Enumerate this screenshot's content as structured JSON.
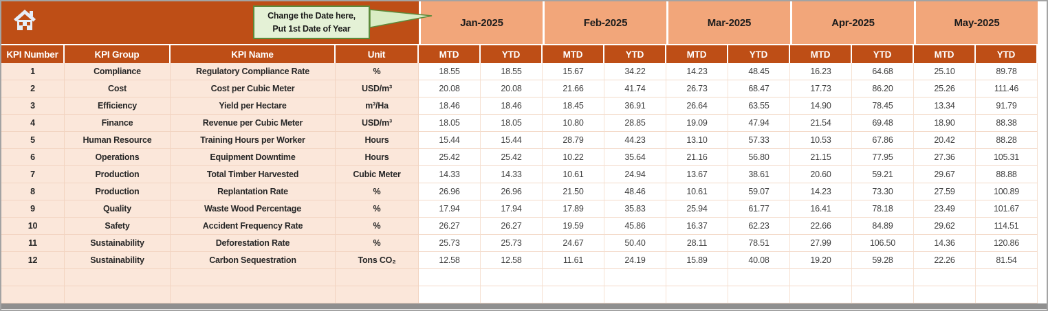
{
  "callout": {
    "line1": "Change the Date here,",
    "line2": "Put 1st Date of Year"
  },
  "columns": {
    "kpi_number": "KPI Number",
    "kpi_group": "KPI Group",
    "kpi_name": "KPI Name",
    "unit": "Unit",
    "mtd": "MTD",
    "ytd": "YTD"
  },
  "months": [
    "Jan-2025",
    "Feb-2025",
    "Mar-2025",
    "Apr-2025",
    "May-2025"
  ],
  "icons": {
    "home": "home-icon",
    "callout_pointer": "callout-pointer-icon"
  },
  "colors": {
    "header_orange": "#BE4E16",
    "month_salmon": "#F2A67A",
    "row_peach": "#FBE7DA",
    "callout_green": "#E4F1D6",
    "callout_border": "#5C8A3A"
  },
  "rows": [
    {
      "num": "1",
      "group": "Compliance",
      "name": "Regulatory Compliance Rate",
      "unit": "%",
      "values": [
        "18.55",
        "18.55",
        "15.67",
        "34.22",
        "14.23",
        "48.45",
        "16.23",
        "64.68",
        "25.10",
        "89.78"
      ]
    },
    {
      "num": "2",
      "group": "Cost",
      "name": "Cost per Cubic Meter",
      "unit": "USD/m³",
      "values": [
        "20.08",
        "20.08",
        "21.66",
        "41.74",
        "26.73",
        "68.47",
        "17.73",
        "86.20",
        "25.26",
        "111.46"
      ]
    },
    {
      "num": "3",
      "group": "Efficiency",
      "name": "Yield per Hectare",
      "unit": "m³/Ha",
      "values": [
        "18.46",
        "18.46",
        "18.45",
        "36.91",
        "26.64",
        "63.55",
        "14.90",
        "78.45",
        "13.34",
        "91.79"
      ]
    },
    {
      "num": "4",
      "group": "Finance",
      "name": "Revenue per Cubic Meter",
      "unit": "USD/m³",
      "values": [
        "18.05",
        "18.05",
        "10.80",
        "28.85",
        "19.09",
        "47.94",
        "21.54",
        "69.48",
        "18.90",
        "88.38"
      ]
    },
    {
      "num": "5",
      "group": "Human Resource",
      "name": "Training Hours per Worker",
      "unit": "Hours",
      "values": [
        "15.44",
        "15.44",
        "28.79",
        "44.23",
        "13.10",
        "57.33",
        "10.53",
        "67.86",
        "20.42",
        "88.28"
      ]
    },
    {
      "num": "6",
      "group": "Operations",
      "name": "Equipment Downtime",
      "unit": "Hours",
      "values": [
        "25.42",
        "25.42",
        "10.22",
        "35.64",
        "21.16",
        "56.80",
        "21.15",
        "77.95",
        "27.36",
        "105.31"
      ]
    },
    {
      "num": "7",
      "group": "Production",
      "name": "Total Timber Harvested",
      "unit": "Cubic Meter",
      "values": [
        "14.33",
        "14.33",
        "10.61",
        "24.94",
        "13.67",
        "38.61",
        "20.60",
        "59.21",
        "29.67",
        "88.88"
      ]
    },
    {
      "num": "8",
      "group": "Production",
      "name": "Replantation Rate",
      "unit": "%",
      "values": [
        "26.96",
        "26.96",
        "21.50",
        "48.46",
        "10.61",
        "59.07",
        "14.23",
        "73.30",
        "27.59",
        "100.89"
      ]
    },
    {
      "num": "9",
      "group": "Quality",
      "name": "Waste Wood Percentage",
      "unit": "%",
      "values": [
        "17.94",
        "17.94",
        "17.89",
        "35.83",
        "25.94",
        "61.77",
        "16.41",
        "78.18",
        "23.49",
        "101.67"
      ]
    },
    {
      "num": "10",
      "group": "Safety",
      "name": "Accident Frequency Rate",
      "unit": "%",
      "values": [
        "26.27",
        "26.27",
        "19.59",
        "45.86",
        "16.37",
        "62.23",
        "22.66",
        "84.89",
        "29.62",
        "114.51"
      ]
    },
    {
      "num": "11",
      "group": "Sustainability",
      "name": "Deforestation Rate",
      "unit": "%",
      "values": [
        "25.73",
        "25.73",
        "24.67",
        "50.40",
        "28.11",
        "78.51",
        "27.99",
        "106.50",
        "14.36",
        "120.86"
      ]
    },
    {
      "num": "12",
      "group": "Sustainability",
      "name": "Carbon Sequestration",
      "unit": "Tons CO₂",
      "values": [
        "12.58",
        "12.58",
        "11.61",
        "24.19",
        "15.89",
        "40.08",
        "19.20",
        "59.28",
        "22.26",
        "81.54"
      ]
    }
  ],
  "empty_rows": 2
}
